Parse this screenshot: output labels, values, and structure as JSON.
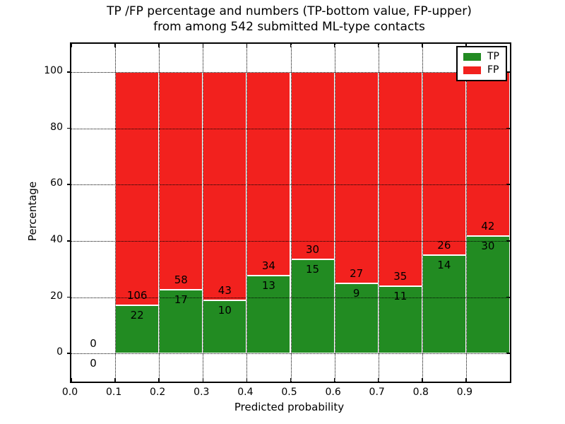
{
  "chart_data": {
    "type": "bar",
    "subtype": "stacked_percentage",
    "title_line1": "TP /FP percentage and numbers (TP-bottom value, FP-upper)",
    "title_line2": "from among 542 submitted ML-type contacts",
    "xlabel": "Predicted probability",
    "ylabel": "Percentage",
    "total_contacts": 542,
    "xlim": [
      0.0,
      1.0
    ],
    "ylim": [
      -10,
      110
    ],
    "grid": "dotted-both-axes",
    "legend_position": "upper-right",
    "xticks": [
      {
        "value": 0.0,
        "label": "0.0"
      },
      {
        "value": 0.1,
        "label": "0.1"
      },
      {
        "value": 0.2,
        "label": "0.2"
      },
      {
        "value": 0.3,
        "label": "0.3"
      },
      {
        "value": 0.4,
        "label": "0.4"
      },
      {
        "value": 0.5,
        "label": "0.5"
      },
      {
        "value": 0.6,
        "label": "0.6"
      },
      {
        "value": 0.7,
        "label": "0.7"
      },
      {
        "value": 0.8,
        "label": "0.8"
      },
      {
        "value": 0.9,
        "label": "0.9"
      }
    ],
    "yticks": [
      {
        "value": 0,
        "label": "0"
      },
      {
        "value": 20,
        "label": "20"
      },
      {
        "value": 40,
        "label": "40"
      },
      {
        "value": 60,
        "label": "60"
      },
      {
        "value": 80,
        "label": "80"
      },
      {
        "value": 100,
        "label": "100"
      }
    ],
    "colors": {
      "tp": "#228b22",
      "fp": "#f2211e",
      "bar_edge": "#ffffff",
      "text": "#000000"
    },
    "bins": [
      {
        "x0": 0.0,
        "x1": 0.1,
        "tp_count": 0,
        "fp_count": 0,
        "tp_pct": 0.0
      },
      {
        "x0": 0.1,
        "x1": 0.2,
        "tp_count": 22,
        "fp_count": 106,
        "tp_pct": 17.19
      },
      {
        "x0": 0.2,
        "x1": 0.3,
        "tp_count": 17,
        "fp_count": 58,
        "tp_pct": 22.67
      },
      {
        "x0": 0.3,
        "x1": 0.4,
        "tp_count": 10,
        "fp_count": 43,
        "tp_pct": 18.87
      },
      {
        "x0": 0.4,
        "x1": 0.5,
        "tp_count": 13,
        "fp_count": 34,
        "tp_pct": 27.66
      },
      {
        "x0": 0.5,
        "x1": 0.6,
        "tp_count": 15,
        "fp_count": 30,
        "tp_pct": 33.33
      },
      {
        "x0": 0.6,
        "x1": 0.7,
        "tp_count": 9,
        "fp_count": 27,
        "tp_pct": 25.0
      },
      {
        "x0": 0.7,
        "x1": 0.8,
        "tp_count": 11,
        "fp_count": 35,
        "tp_pct": 23.91
      },
      {
        "x0": 0.8,
        "x1": 0.9,
        "tp_count": 14,
        "fp_count": 26,
        "tp_pct": 35.0
      },
      {
        "x0": 0.9,
        "x1": 1.0,
        "tp_count": 30,
        "fp_count": 42,
        "tp_pct": 41.67
      }
    ],
    "legend": {
      "items": [
        {
          "label": "TP",
          "color": "#228b22"
        },
        {
          "label": "FP",
          "color": "#f2211e"
        }
      ]
    }
  }
}
